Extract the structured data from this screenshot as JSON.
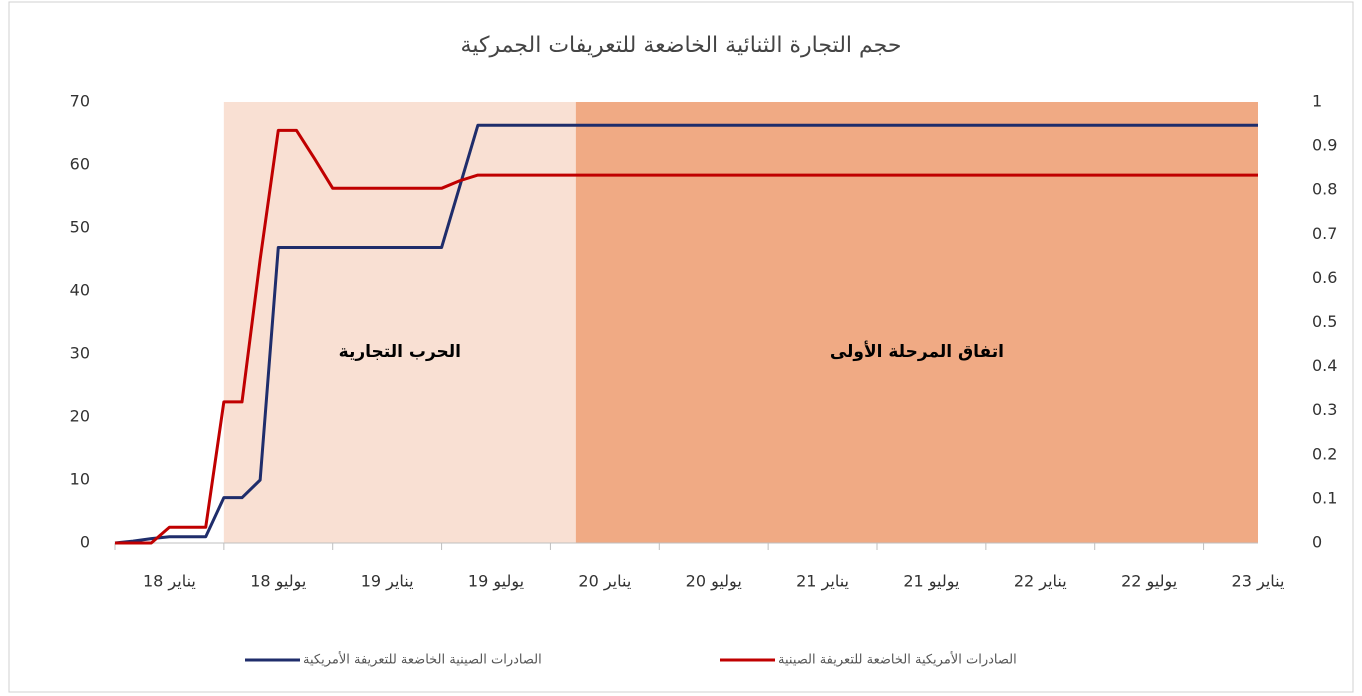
{
  "chart_data": {
    "type": "line",
    "title": "حجم التجارة الثنائية الخاضعة للتعريفات الجمركية",
    "categories": [
      "يناير 18",
      null,
      null,
      null,
      null,
      null,
      "يوليو 18",
      null,
      null,
      null,
      null,
      null,
      "يناير 19",
      null,
      null,
      null,
      null,
      null,
      "يوليو 19",
      null,
      null,
      null,
      null,
      null,
      "يناير 20",
      null,
      null,
      null,
      null,
      null,
      "يوليو 20",
      null,
      null,
      null,
      null,
      null,
      "يناير 21",
      null,
      null,
      null,
      null,
      null,
      "يوليو 21",
      null,
      null,
      null,
      null,
      null,
      "يناير 22",
      null,
      null,
      null,
      null,
      null,
      "يوليو 22",
      null,
      null,
      null,
      null,
      null,
      "يناير 23",
      null,
      null,
      null
    ],
    "series": [
      {
        "name": "الصادرات الصينية الخاضعة للتعريفة الأمريكية",
        "color": "#1f2d6b",
        "values": [
          0,
          0.3,
          0.7,
          1,
          1,
          1,
          7.2,
          7.2,
          10,
          46.9,
          46.9,
          46.9,
          46.9,
          46.9,
          46.9,
          46.9,
          46.9,
          46.9,
          46.9,
          56.6,
          66.3,
          66.3,
          66.3,
          66.3,
          66.3,
          66.3,
          66.3,
          66.3,
          66.3,
          66.3,
          66.3,
          66.3,
          66.3,
          66.3,
          66.3,
          66.3,
          66.3,
          66.3,
          66.3,
          66.3,
          66.3,
          66.3,
          66.3,
          66.3,
          66.3,
          66.3,
          66.3,
          66.3,
          66.3,
          66.3,
          66.3,
          66.3,
          66.3,
          66.3,
          66.3,
          66.3,
          66.3,
          66.3,
          66.3,
          66.3,
          66.3,
          66.3,
          66.3,
          66.3
        ]
      },
      {
        "name": "الصادرات الأمريكية الخاضعة للتعريفة الصينية",
        "color": "#c00000",
        "values": [
          0,
          0,
          0,
          2.5,
          2.5,
          2.5,
          22.4,
          22.4,
          45,
          65.5,
          65.5,
          61,
          56.3,
          56.3,
          56.3,
          56.3,
          56.3,
          56.3,
          56.3,
          57.5,
          58.4,
          58.4,
          58.4,
          58.4,
          58.4,
          58.4,
          58.4,
          58.4,
          58.4,
          58.4,
          58.4,
          58.4,
          58.4,
          58.4,
          58.4,
          58.4,
          58.4,
          58.4,
          58.4,
          58.4,
          58.4,
          58.4,
          58.4,
          58.4,
          58.4,
          58.4,
          58.4,
          58.4,
          58.4,
          58.4,
          58.4,
          58.4,
          58.4,
          58.4,
          58.4,
          58.4,
          58.4,
          58.4,
          58.4,
          58.4,
          58.4,
          58.4,
          58.4,
          58.4
        ]
      }
    ],
    "ylim": [
      0,
      70
    ],
    "yticks": [
      0,
      10,
      20,
      30,
      40,
      50,
      60,
      70
    ],
    "y2lim": [
      0,
      1
    ],
    "y2ticks": [
      0,
      0.1,
      0.2,
      0.3,
      0.4,
      0.5,
      0.6,
      0.7,
      0.8,
      0.9,
      1
    ],
    "shaded_regions": [
      {
        "label": "الحرب التجارية",
        "start": 6,
        "end": 25.4,
        "color": "#f9e0d3"
      },
      {
        "label": "اتفاق المرحلة الأولى",
        "start": 25.4,
        "end": 63,
        "color": "#f0aa84"
      }
    ],
    "legend": "bottom"
  }
}
